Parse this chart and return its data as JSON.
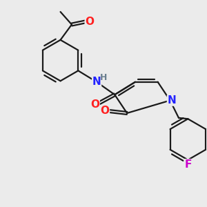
{
  "bg_color": "#ebebeb",
  "bond_color": "#1a1a1a",
  "bond_width": 1.6,
  "atom_colors": {
    "N": "#2323ff",
    "O": "#ff2020",
    "F": "#cc00cc",
    "H": "#6a7f8e",
    "C": "#1a1a1a"
  },
  "font_size": 10,
  "fig_size": [
    3.0,
    3.0
  ],
  "dpi": 100,
  "xlim": [
    -0.5,
    9.5
  ],
  "ylim": [
    -0.5,
    9.5
  ]
}
